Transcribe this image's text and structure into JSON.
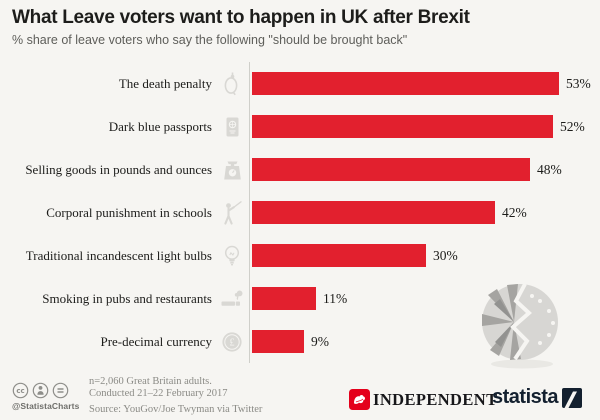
{
  "chart_data": {
    "type": "bar",
    "orientation": "horizontal",
    "title": "What Leave voters want to happen in UK after Brexit",
    "subtitle": "% share of leave voters who say the following \"should be brought back\"",
    "unit": "%",
    "xlim": [
      0,
      55
    ],
    "grid": false,
    "legend": false,
    "categories": [
      "The death penalty",
      "Dark blue passports",
      "Selling goods in pounds and ounces",
      "Corporal punishment in schools",
      "Traditional incandescent light bulbs",
      "Smoking in pubs and restaurants",
      "Pre-decimal currency"
    ],
    "values": [
      53,
      52,
      48,
      42,
      30,
      11,
      9
    ],
    "value_labels": [
      "53%",
      "52%",
      "48%",
      "42%",
      "30%",
      "11%",
      "9%"
    ],
    "category_icons": [
      "noose-icon",
      "passport-icon",
      "scale-icon",
      "cane-icon",
      "bulb-icon",
      "cigarette-icon",
      "coin-icon"
    ]
  },
  "footer": {
    "handle": "@StatistaCharts",
    "license_icons": [
      "cc-icon",
      "by-icon",
      "nd-icon"
    ],
    "note_sample": "n=2,060 Great Britain adults.",
    "note_conducted": "Conducted 21–22 February 2017",
    "note_source": "Source: YouGov/Joe Twyman via Twitter",
    "publisher_logo": "INDEPENDENT",
    "provider_logo": "statista"
  },
  "colors": {
    "bar_red": "#e2202e",
    "icon_gray": "#d9d8d4",
    "independent_red": "#e4001b",
    "statista_navy": "#13202f",
    "background": "#f6f5f2"
  }
}
